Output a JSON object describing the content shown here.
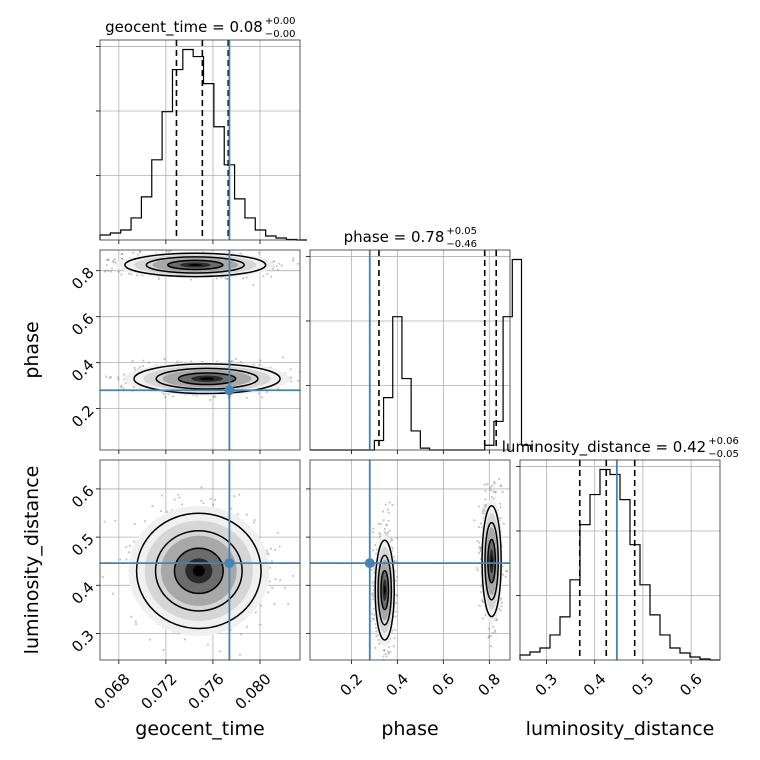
{
  "chart_data": {
    "type": "corner",
    "parameters": [
      {
        "name": "geocent_time",
        "label": "geocent_time",
        "range": [
          0.0664,
          0.0834
        ],
        "ticks": [
          0.068,
          0.072,
          0.076,
          0.08
        ],
        "tick_labels": [
          "0.068",
          "0.072",
          "0.076",
          "0.080"
        ],
        "median_text": "0.08",
        "plus_text": "+0.00",
        "minus_text": "−0.00",
        "quantiles": [
          0.0729,
          0.0751,
          0.0773
        ],
        "truth": 0.0774,
        "hist_bin_width": 0.00088,
        "hist": [
          0.5,
          0.7,
          1.0,
          2.2,
          4.3,
          8.0,
          12.8,
          17.0,
          19.0,
          18.3,
          15.6,
          11.3,
          7.5,
          4.1,
          2.2,
          1.0,
          0.4,
          0.2,
          0.05,
          0.0
        ]
      },
      {
        "name": "phase",
        "label": "phase",
        "range": [
          0.02,
          0.89
        ],
        "ticks": [
          0.2,
          0.4,
          0.6,
          0.8
        ],
        "tick_labels": [
          "0.2",
          "0.4",
          "0.6",
          "0.8"
        ],
        "median_text": "0.78",
        "plus_text": "+0.05",
        "minus_text": "−0.46",
        "quantiles": [
          0.32,
          0.78,
          0.83
        ],
        "truth": 0.28,
        "hist_bin_width": 0.04,
        "hist": [
          0.0,
          0.0,
          0.0,
          0.0,
          0.0,
          0.0,
          0.0,
          1.0,
          5.5,
          14.0,
          7.5,
          2.0,
          0.2,
          0.0,
          0.0,
          0.0,
          0.0,
          0.0,
          0.0,
          0.5,
          3.0,
          14.0,
          20.0,
          0.5
        ]
      },
      {
        "name": "luminosity_distance",
        "label": "luminosity_distance",
        "range": [
          0.245,
          0.66
        ],
        "ticks": [
          0.3,
          0.4,
          0.5,
          0.6
        ],
        "tick_labels": [
          "0.3",
          "0.4",
          "0.5",
          "0.6"
        ],
        "median_text": "0.42",
        "plus_text": "+0.06",
        "minus_text": "−0.05",
        "quantiles": [
          0.369,
          0.424,
          0.483
        ],
        "truth": 0.446,
        "hist_bin_width": 0.02075,
        "hist": [
          0.5,
          0.8,
          1.2,
          2.5,
          4.3,
          8.0,
          13.5,
          16.5,
          19.0,
          18.5,
          16.0,
          11.5,
          7.5,
          4.5,
          2.5,
          1.2,
          0.7,
          0.3,
          0.1,
          0.0
        ]
      }
    ],
    "pairs": [
      {
        "x": "geocent_time",
        "y": "phase",
        "modes": [
          {
            "cx": 0.0745,
            "cy": 0.825,
            "sx": 0.0026,
            "sy": 0.022
          },
          {
            "cx": 0.0755,
            "cy": 0.33,
            "sx": 0.0027,
            "sy": 0.028
          }
        ]
      },
      {
        "x": "geocent_time",
        "y": "luminosity_distance",
        "modes": [
          {
            "cx": 0.0748,
            "cy": 0.43,
            "sx": 0.0023,
            "sy": 0.052
          }
        ]
      },
      {
        "x": "phase",
        "y": "luminosity_distance",
        "modes": [
          {
            "cx": 0.345,
            "cy": 0.39,
            "sx": 0.018,
            "sy": 0.045
          },
          {
            "cx": 0.81,
            "cy": 0.45,
            "sx": 0.018,
            "sy": 0.05
          }
        ]
      }
    ],
    "grid": true,
    "truth_color": "#4682b4"
  }
}
